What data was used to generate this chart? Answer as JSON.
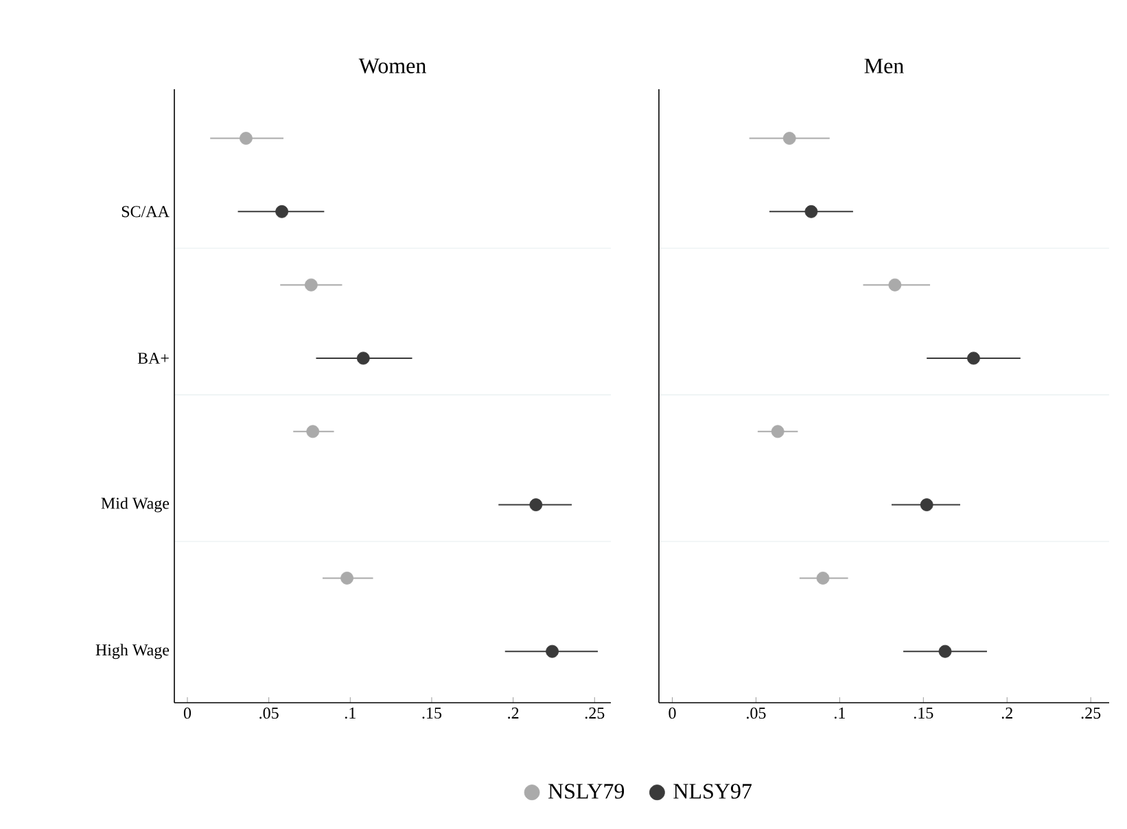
{
  "chart_data": [
    {
      "type": "scatter",
      "title": "Women",
      "orientation": "horizontal",
      "categories": [
        null,
        "SC/AA",
        null,
        "BA+",
        null,
        "Mid Wage",
        null,
        "High Wage"
      ],
      "series": [
        {
          "name": "NSLY79",
          "color": "#aaaaaa",
          "values": [
            0.036,
            null,
            0.076,
            null,
            0.077,
            null,
            0.098,
            null
          ],
          "errors": [
            [
              0.014,
              0.059
            ],
            null,
            [
              0.057,
              0.095
            ],
            null,
            [
              0.065,
              0.09
            ],
            null,
            [
              0.083,
              0.114
            ],
            null
          ]
        },
        {
          "name": "NLSY97",
          "color": "#3a3a3a",
          "values": [
            null,
            0.058,
            null,
            0.108,
            null,
            0.214,
            null,
            0.224
          ],
          "errors": [
            null,
            [
              0.031,
              0.084
            ],
            null,
            [
              0.079,
              0.138
            ],
            null,
            [
              0.191,
              0.236
            ],
            null,
            [
              0.195,
              0.252
            ]
          ]
        }
      ],
      "xlim": [
        -0.008,
        0.26
      ],
      "xticks": [
        0,
        {
          "value": 0.05,
          "label": ".05"
        },
        {
          "value": 0.1,
          "label": ".1"
        },
        {
          "value": 0.15,
          "label": ".15"
        },
        {
          "value": 0.2,
          "label": ".2"
        },
        {
          "value": 0.25,
          "label": ".25"
        }
      ],
      "grid": "y",
      "marker": "circle",
      "legend": "bottom"
    },
    {
      "type": "scatter",
      "title": "Men",
      "orientation": "horizontal",
      "categories": [
        null,
        null,
        null,
        null,
        null,
        null,
        null,
        null
      ],
      "series": [
        {
          "color": "#aaaaaa",
          "values": [
            0.07,
            null,
            0.133,
            null,
            0.063,
            null,
            0.09,
            null
          ],
          "errors": [
            [
              0.046,
              0.094
            ],
            null,
            [
              0.114,
              0.154
            ],
            null,
            [
              0.051,
              0.075
            ],
            null,
            [
              0.076,
              0.105
            ],
            null
          ]
        },
        {
          "color": "#3a3a3a",
          "values": [
            null,
            0.083,
            null,
            0.18,
            null,
            0.152,
            null,
            0.163
          ],
          "errors": [
            null,
            [
              0.058,
              0.108
            ],
            null,
            [
              0.152,
              0.208
            ],
            null,
            [
              0.131,
              0.172
            ],
            null,
            [
              0.138,
              0.188
            ]
          ]
        }
      ],
      "xlim": [
        -0.008,
        0.261
      ],
      "xticks": [
        0,
        {
          "value": 0.05,
          "label": ".05"
        },
        {
          "value": 0.1,
          "label": ".1"
        },
        {
          "value": 0.15,
          "label": ".15"
        },
        {
          "value": 0.2,
          "label": ".2"
        },
        {
          "value": 0.25,
          "label": ".25"
        }
      ],
      "grid": "y",
      "marker": "circle",
      "tick_labels": "x"
    }
  ]
}
